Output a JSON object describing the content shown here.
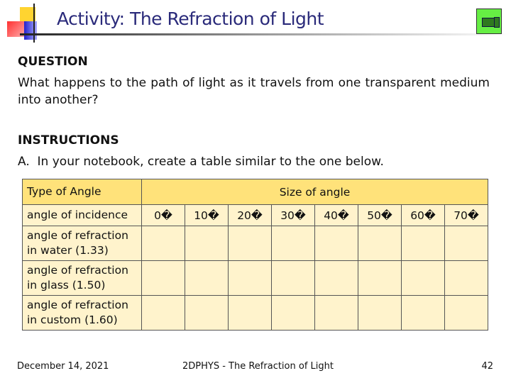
{
  "title": "Activity: The Refraction of Light",
  "question": {
    "heading": "QUESTION",
    "text": "What happens to the path of light as it travels from one transparent medium into another?"
  },
  "instructions": {
    "heading": "INSTRUCTIONS",
    "item_a_marker": "A.",
    "item_a": "In your notebook, create a table similar to the one below."
  },
  "table": {
    "header_type": "Type of Angle",
    "header_size": "Size of angle",
    "incidence_label": "angle of incidence",
    "angles": [
      "0�",
      "10�",
      "20�",
      "30�",
      "40�",
      "50�",
      "60�",
      "70�"
    ],
    "rows": [
      {
        "line1": "angle of refraction",
        "line2": "in water (1.33)"
      },
      {
        "line1": "angle of refraction",
        "line2": "in glass (1.50)"
      },
      {
        "line1": "angle of refraction",
        "line2": "in custom (1.60)"
      }
    ]
  },
  "footer": {
    "date": "December 14, 2021",
    "center": "2DPHYS - The Refraction of Light",
    "page": "42"
  },
  "icons": {
    "nav": "movie-camera-icon"
  }
}
